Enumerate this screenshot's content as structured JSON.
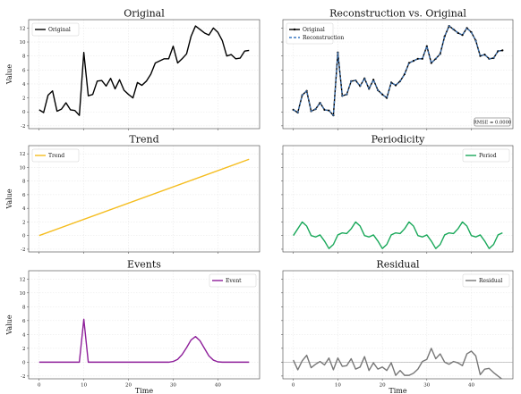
{
  "chart_data": [
    {
      "type": "line",
      "panel": "original",
      "title": "Original",
      "ylabel": "Value",
      "xlabel": "",
      "xlim": [
        -2.35,
        49.35
      ],
      "ylim": [
        -2.4,
        13.2
      ],
      "yticks": [
        -2,
        0,
        2,
        4,
        6,
        8,
        10,
        12
      ],
      "xticks": [
        0,
        10,
        20,
        30,
        40
      ],
      "show_xtick_labels": false,
      "legend": "top-left",
      "series": [
        {
          "name": "Original",
          "color": "#000000",
          "values": [
            0.3,
            -0.1,
            2.4,
            3.0,
            0.1,
            0.4,
            1.3,
            0.3,
            0.2,
            -0.5,
            8.5,
            2.3,
            2.5,
            4.4,
            4.5,
            3.7,
            4.8,
            3.3,
            4.6,
            3.1,
            2.5,
            2.0,
            4.2,
            3.8,
            4.4,
            5.4,
            7.0,
            7.3,
            7.6,
            7.6,
            9.4,
            7.0,
            7.6,
            8.3,
            10.8,
            12.3,
            11.8,
            11.3,
            11.0,
            12.0,
            11.4,
            10.2,
            8.0,
            8.2,
            7.6,
            7.7,
            8.7,
            8.8
          ]
        }
      ]
    },
    {
      "type": "line",
      "panel": "reconstruction",
      "title": "Reconstruction vs. Original",
      "ylabel": "",
      "xlabel": "",
      "xlim": [
        -2.35,
        49.35
      ],
      "ylim": [
        -2.4,
        13.2
      ],
      "yticks": [
        -2,
        0,
        2,
        4,
        6,
        8,
        10,
        12
      ],
      "xticks": [
        0,
        10,
        20,
        30,
        40
      ],
      "show_ytick_labels": false,
      "show_xtick_labels": false,
      "legend": "top-left",
      "annotation": "RMSE = 0.0000",
      "series": [
        {
          "name": "Original",
          "color": "#000000",
          "marker": "dot",
          "values": [
            0.3,
            -0.1,
            2.4,
            3.0,
            0.1,
            0.4,
            1.3,
            0.3,
            0.2,
            -0.5,
            8.5,
            2.3,
            2.5,
            4.4,
            4.5,
            3.7,
            4.8,
            3.3,
            4.6,
            3.1,
            2.5,
            2.0,
            4.2,
            3.8,
            4.4,
            5.4,
            7.0,
            7.3,
            7.6,
            7.6,
            9.4,
            7.0,
            7.6,
            8.3,
            10.8,
            12.3,
            11.8,
            11.3,
            11.0,
            12.0,
            11.4,
            10.2,
            8.0,
            8.2,
            7.6,
            7.7,
            8.7,
            8.8
          ]
        },
        {
          "name": "Reconstruction",
          "color": "#3a78c2",
          "dashed": true,
          "values": [
            0.3,
            -0.1,
            2.4,
            3.0,
            0.1,
            0.4,
            1.3,
            0.3,
            0.2,
            -0.5,
            8.5,
            2.3,
            2.5,
            4.4,
            4.5,
            3.7,
            4.8,
            3.3,
            4.6,
            3.1,
            2.5,
            2.0,
            4.2,
            3.8,
            4.4,
            5.4,
            7.0,
            7.3,
            7.6,
            7.6,
            9.4,
            7.0,
            7.6,
            8.3,
            10.8,
            12.3,
            11.8,
            11.3,
            11.0,
            12.0,
            11.4,
            10.2,
            8.0,
            8.2,
            7.6,
            7.7,
            8.7,
            8.8
          ]
        }
      ]
    },
    {
      "type": "line",
      "panel": "trend",
      "title": "Trend",
      "ylabel": "Value",
      "xlabel": "",
      "xlim": [
        -2.35,
        49.35
      ],
      "ylim": [
        -2.4,
        13.2
      ],
      "yticks": [
        -2,
        0,
        2,
        4,
        6,
        8,
        10,
        12
      ],
      "xticks": [
        0,
        10,
        20,
        30,
        40
      ],
      "show_xtick_labels": false,
      "legend": "top-left",
      "series": [
        {
          "name": "Trend",
          "color": "#f5bd1f",
          "x": [
            0,
            47
          ],
          "values": [
            0.0,
            11.2
          ]
        }
      ]
    },
    {
      "type": "line",
      "panel": "periodicity",
      "title": "Periodicity",
      "ylabel": "",
      "xlabel": "",
      "xlim": [
        -2.35,
        49.35
      ],
      "ylim": [
        -2.4,
        13.2
      ],
      "yticks": [
        -2,
        0,
        2,
        4,
        6,
        8,
        10,
        12
      ],
      "xticks": [
        0,
        10,
        20,
        30,
        40
      ],
      "show_ytick_labels": false,
      "show_xtick_labels": false,
      "legend": "top-right",
      "series": [
        {
          "name": "Period",
          "color": "#1aa85a",
          "values": [
            0.0,
            1.0,
            2.0,
            1.4,
            0.0,
            -0.2,
            0.1,
            -0.8,
            -1.9,
            -1.3,
            0.1,
            0.4,
            0.3,
            1.0,
            2.0,
            1.4,
            0.0,
            -0.2,
            0.1,
            -0.8,
            -1.9,
            -1.3,
            0.1,
            0.4,
            0.3,
            1.0,
            2.0,
            1.4,
            0.0,
            -0.2,
            0.1,
            -0.8,
            -1.9,
            -1.3,
            0.1,
            0.4,
            0.3,
            1.0,
            2.0,
            1.4,
            0.0,
            -0.2,
            0.1,
            -0.8,
            -1.9,
            -1.3,
            0.1,
            0.4
          ]
        }
      ]
    },
    {
      "type": "line",
      "panel": "events",
      "title": "Events",
      "ylabel": "Value",
      "xlabel": "Time",
      "xlim": [
        -2.35,
        49.35
      ],
      "ylim": [
        -2.4,
        13.2
      ],
      "yticks": [
        -2,
        0,
        2,
        4,
        6,
        8,
        10,
        12
      ],
      "xticks": [
        0,
        10,
        20,
        30,
        40
      ],
      "legend": "top-right",
      "series": [
        {
          "name": "Event",
          "color": "#8e1f9a",
          "values": [
            0,
            0,
            0,
            0,
            0,
            0,
            0,
            0,
            0,
            0,
            6.2,
            0,
            0,
            0,
            0,
            0,
            0,
            0,
            0,
            0,
            0,
            0,
            0,
            0,
            0,
            0,
            0,
            0,
            0,
            0,
            0.1,
            0.4,
            1.1,
            2.1,
            3.2,
            3.7,
            3.1,
            2.0,
            0.9,
            0.3,
            0.05,
            0,
            0,
            0,
            0,
            0,
            0,
            0
          ]
        }
      ]
    },
    {
      "type": "line",
      "panel": "residual",
      "title": "Residual",
      "ylabel": "",
      "xlabel": "Time",
      "xlim": [
        -2.35,
        49.35
      ],
      "ylim": [
        -2.4,
        13.2
      ],
      "yticks": [
        -2,
        0,
        2,
        4,
        6,
        8,
        10,
        12
      ],
      "xticks": [
        0,
        10,
        20,
        30,
        40
      ],
      "show_ytick_labels": false,
      "zero_line": true,
      "legend": "top-right",
      "series": [
        {
          "name": "Residual",
          "color": "#777777",
          "values": [
            0.3,
            -1.1,
            0.2,
            1.0,
            -0.8,
            -0.3,
            0.1,
            -0.4,
            0.6,
            -1.1,
            0.6,
            -0.6,
            -0.5,
            0.5,
            -1.0,
            -0.7,
            0.8,
            -1.2,
            -0.1,
            -1.0,
            -0.7,
            -1.2,
            -0.1,
            -1.9,
            -1.2,
            -1.9,
            -1.9,
            -1.6,
            -1.0,
            0.1,
            0.4,
            2.0,
            0.5,
            1.2,
            0.0,
            -0.3,
            0.1,
            -0.1,
            -0.5,
            1.2,
            1.6,
            0.9,
            -1.8,
            -1.0,
            -0.9,
            -1.5,
            -2.0,
            -2.5
          ]
        }
      ]
    }
  ]
}
